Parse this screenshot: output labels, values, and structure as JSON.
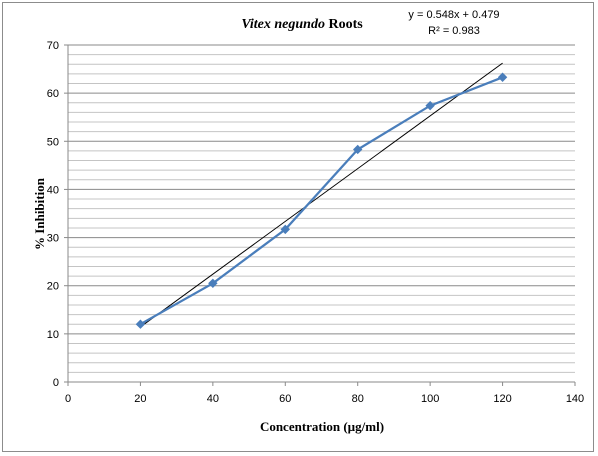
{
  "chart_data": {
    "type": "line",
    "title_italic": "Vitex negundo",
    "title_rest": " Roots",
    "xlabel": "Concentration (µg/ml)",
    "ylabel": "% Inhibition",
    "xlim": [
      0,
      140
    ],
    "ylim": [
      0,
      70
    ],
    "x_ticks": [
      0,
      20,
      40,
      60,
      80,
      100,
      120,
      140
    ],
    "y_ticks": [
      0,
      10,
      20,
      30,
      40,
      50,
      60,
      70
    ],
    "grid": true,
    "series": [
      {
        "x": [
          20,
          40,
          60,
          80,
          100,
          120
        ],
        "values": [
          12.0,
          20.5,
          31.7,
          48.3,
          57.4,
          63.3
        ],
        "color": "#4a7ebb",
        "marker": "diamond"
      }
    ],
    "trendline": {
      "type": "linear",
      "slope": 0.548,
      "intercept": 0.479,
      "color": "#000000",
      "x_range": [
        20,
        120
      ],
      "equation": "y = 0.548x + 0.479",
      "r_squared": "R² = 0.983"
    }
  }
}
